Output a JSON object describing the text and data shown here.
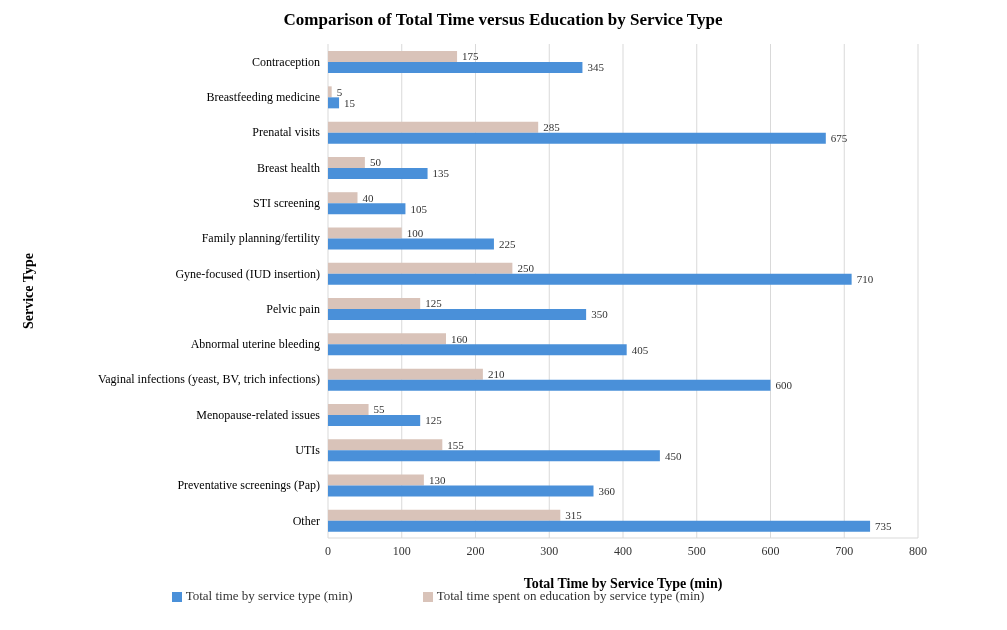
{
  "chart_data": {
    "type": "bar",
    "orientation": "horizontal",
    "title": "Comparison of Total Time versus Education by Service Type",
    "xlabel": "Total Time by Service Type (min)",
    "ylabel": "Service Type",
    "categories": [
      "Contraception",
      "Breastfeeding medicine",
      "Prenatal visits",
      "Breast health",
      "STI screening",
      "Family planning/fertility",
      "Gyne-focused (IUD insertion)",
      "Pelvic pain",
      "Abnormal uterine bleeding",
      "Vaginal infections (yeast, BV, trich infections)",
      "Menopause-related issues",
      "UTIs",
      "Preventative screenings (Pap)",
      "Other"
    ],
    "series": [
      {
        "name": "Total time spent on education by service type (min)",
        "color": "#d9c3b9",
        "values": [
          175,
          5,
          285,
          50,
          40,
          100,
          250,
          125,
          160,
          210,
          55,
          155,
          130,
          315
        ]
      },
      {
        "name": "Total time by service type (min)",
        "color": "#4a90d9",
        "values": [
          345,
          15,
          675,
          135,
          105,
          225,
          710,
          350,
          405,
          600,
          125,
          450,
          360,
          735
        ]
      }
    ],
    "xlim": [
      0,
      800
    ],
    "xticks": [
      0,
      100,
      200,
      300,
      400,
      500,
      600,
      700,
      800
    ],
    "grid": "x",
    "legend": "bottom",
    "data_labels": true
  }
}
